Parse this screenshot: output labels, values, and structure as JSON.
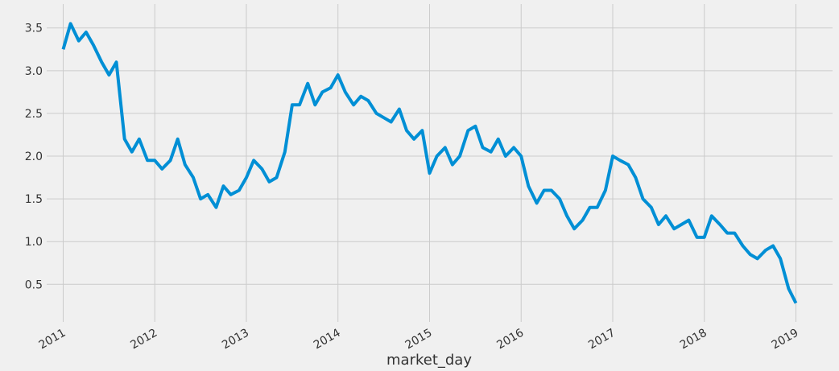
{
  "chart_data": {
    "type": "line",
    "xlabel": "market_day",
    "x": [
      2011.0,
      2011.08,
      2011.17,
      2011.25,
      2011.33,
      2011.42,
      2011.5,
      2011.58,
      2011.67,
      2011.75,
      2011.83,
      2011.92,
      2012.0,
      2012.08,
      2012.17,
      2012.25,
      2012.33,
      2012.42,
      2012.5,
      2012.58,
      2012.67,
      2012.75,
      2012.83,
      2012.92,
      2013.0,
      2013.08,
      2013.17,
      2013.25,
      2013.33,
      2013.42,
      2013.5,
      2013.58,
      2013.67,
      2013.75,
      2013.83,
      2013.92,
      2014.0,
      2014.08,
      2014.17,
      2014.25,
      2014.33,
      2014.42,
      2014.5,
      2014.58,
      2014.67,
      2014.75,
      2014.83,
      2014.92,
      2015.0,
      2015.08,
      2015.17,
      2015.25,
      2015.33,
      2015.42,
      2015.5,
      2015.58,
      2015.67,
      2015.75,
      2015.83,
      2015.92,
      2016.0,
      2016.08,
      2016.17,
      2016.25,
      2016.33,
      2016.42,
      2016.5,
      2016.58,
      2016.67,
      2016.75,
      2016.83,
      2016.92,
      2017.0,
      2017.08,
      2017.17,
      2017.25,
      2017.33,
      2017.42,
      2017.5,
      2017.58,
      2017.67,
      2017.75,
      2017.83,
      2017.92,
      2018.0,
      2018.08,
      2018.17,
      2018.25,
      2018.33,
      2018.42,
      2018.5,
      2018.58,
      2018.67,
      2018.75,
      2018.83,
      2018.92,
      2019.0
    ],
    "series": [
      {
        "color": "#008fd5",
        "values": [
          3.25,
          3.55,
          3.35,
          3.45,
          3.3,
          3.1,
          2.95,
          3.1,
          2.2,
          2.05,
          2.2,
          1.95,
          1.95,
          1.85,
          1.95,
          2.2,
          1.9,
          1.75,
          1.5,
          1.55,
          1.4,
          1.65,
          1.55,
          1.6,
          1.75,
          1.95,
          1.85,
          1.7,
          1.75,
          2.05,
          2.6,
          2.6,
          2.85,
          2.6,
          2.75,
          2.8,
          2.95,
          2.75,
          2.6,
          2.7,
          2.65,
          2.5,
          2.45,
          2.4,
          2.55,
          2.3,
          2.2,
          2.3,
          1.8,
          2.0,
          2.1,
          1.9,
          2.0,
          2.3,
          2.35,
          2.1,
          2.05,
          2.2,
          2.0,
          2.1,
          2.0,
          1.65,
          1.45,
          1.6,
          1.6,
          1.5,
          1.3,
          1.15,
          1.25,
          1.4,
          1.4,
          1.6,
          2.0,
          1.95,
          1.9,
          1.75,
          1.5,
          1.4,
          1.2,
          1.3,
          1.15,
          1.2,
          1.25,
          1.05,
          1.05,
          1.3,
          1.2,
          1.1,
          1.1,
          0.95,
          0.85,
          0.8,
          0.9,
          0.95,
          0.8,
          0.45,
          0.28
        ]
      }
    ],
    "xlim": [
      2010.82,
      2019.4
    ],
    "xticks": [
      2011,
      2012,
      2013,
      2014,
      2015,
      2016,
      2017,
      2018,
      2019
    ],
    "ylim": [
      0.06,
      3.78
    ],
    "yticks": [
      0.5,
      {
        "value": 1,
        "label": "1.0"
      },
      1.5,
      {
        "value": 2,
        "label": "2.0"
      },
      2.5,
      {
        "value": 3,
        "label": "3.0"
      },
      3.5
    ],
    "grid": true
  }
}
